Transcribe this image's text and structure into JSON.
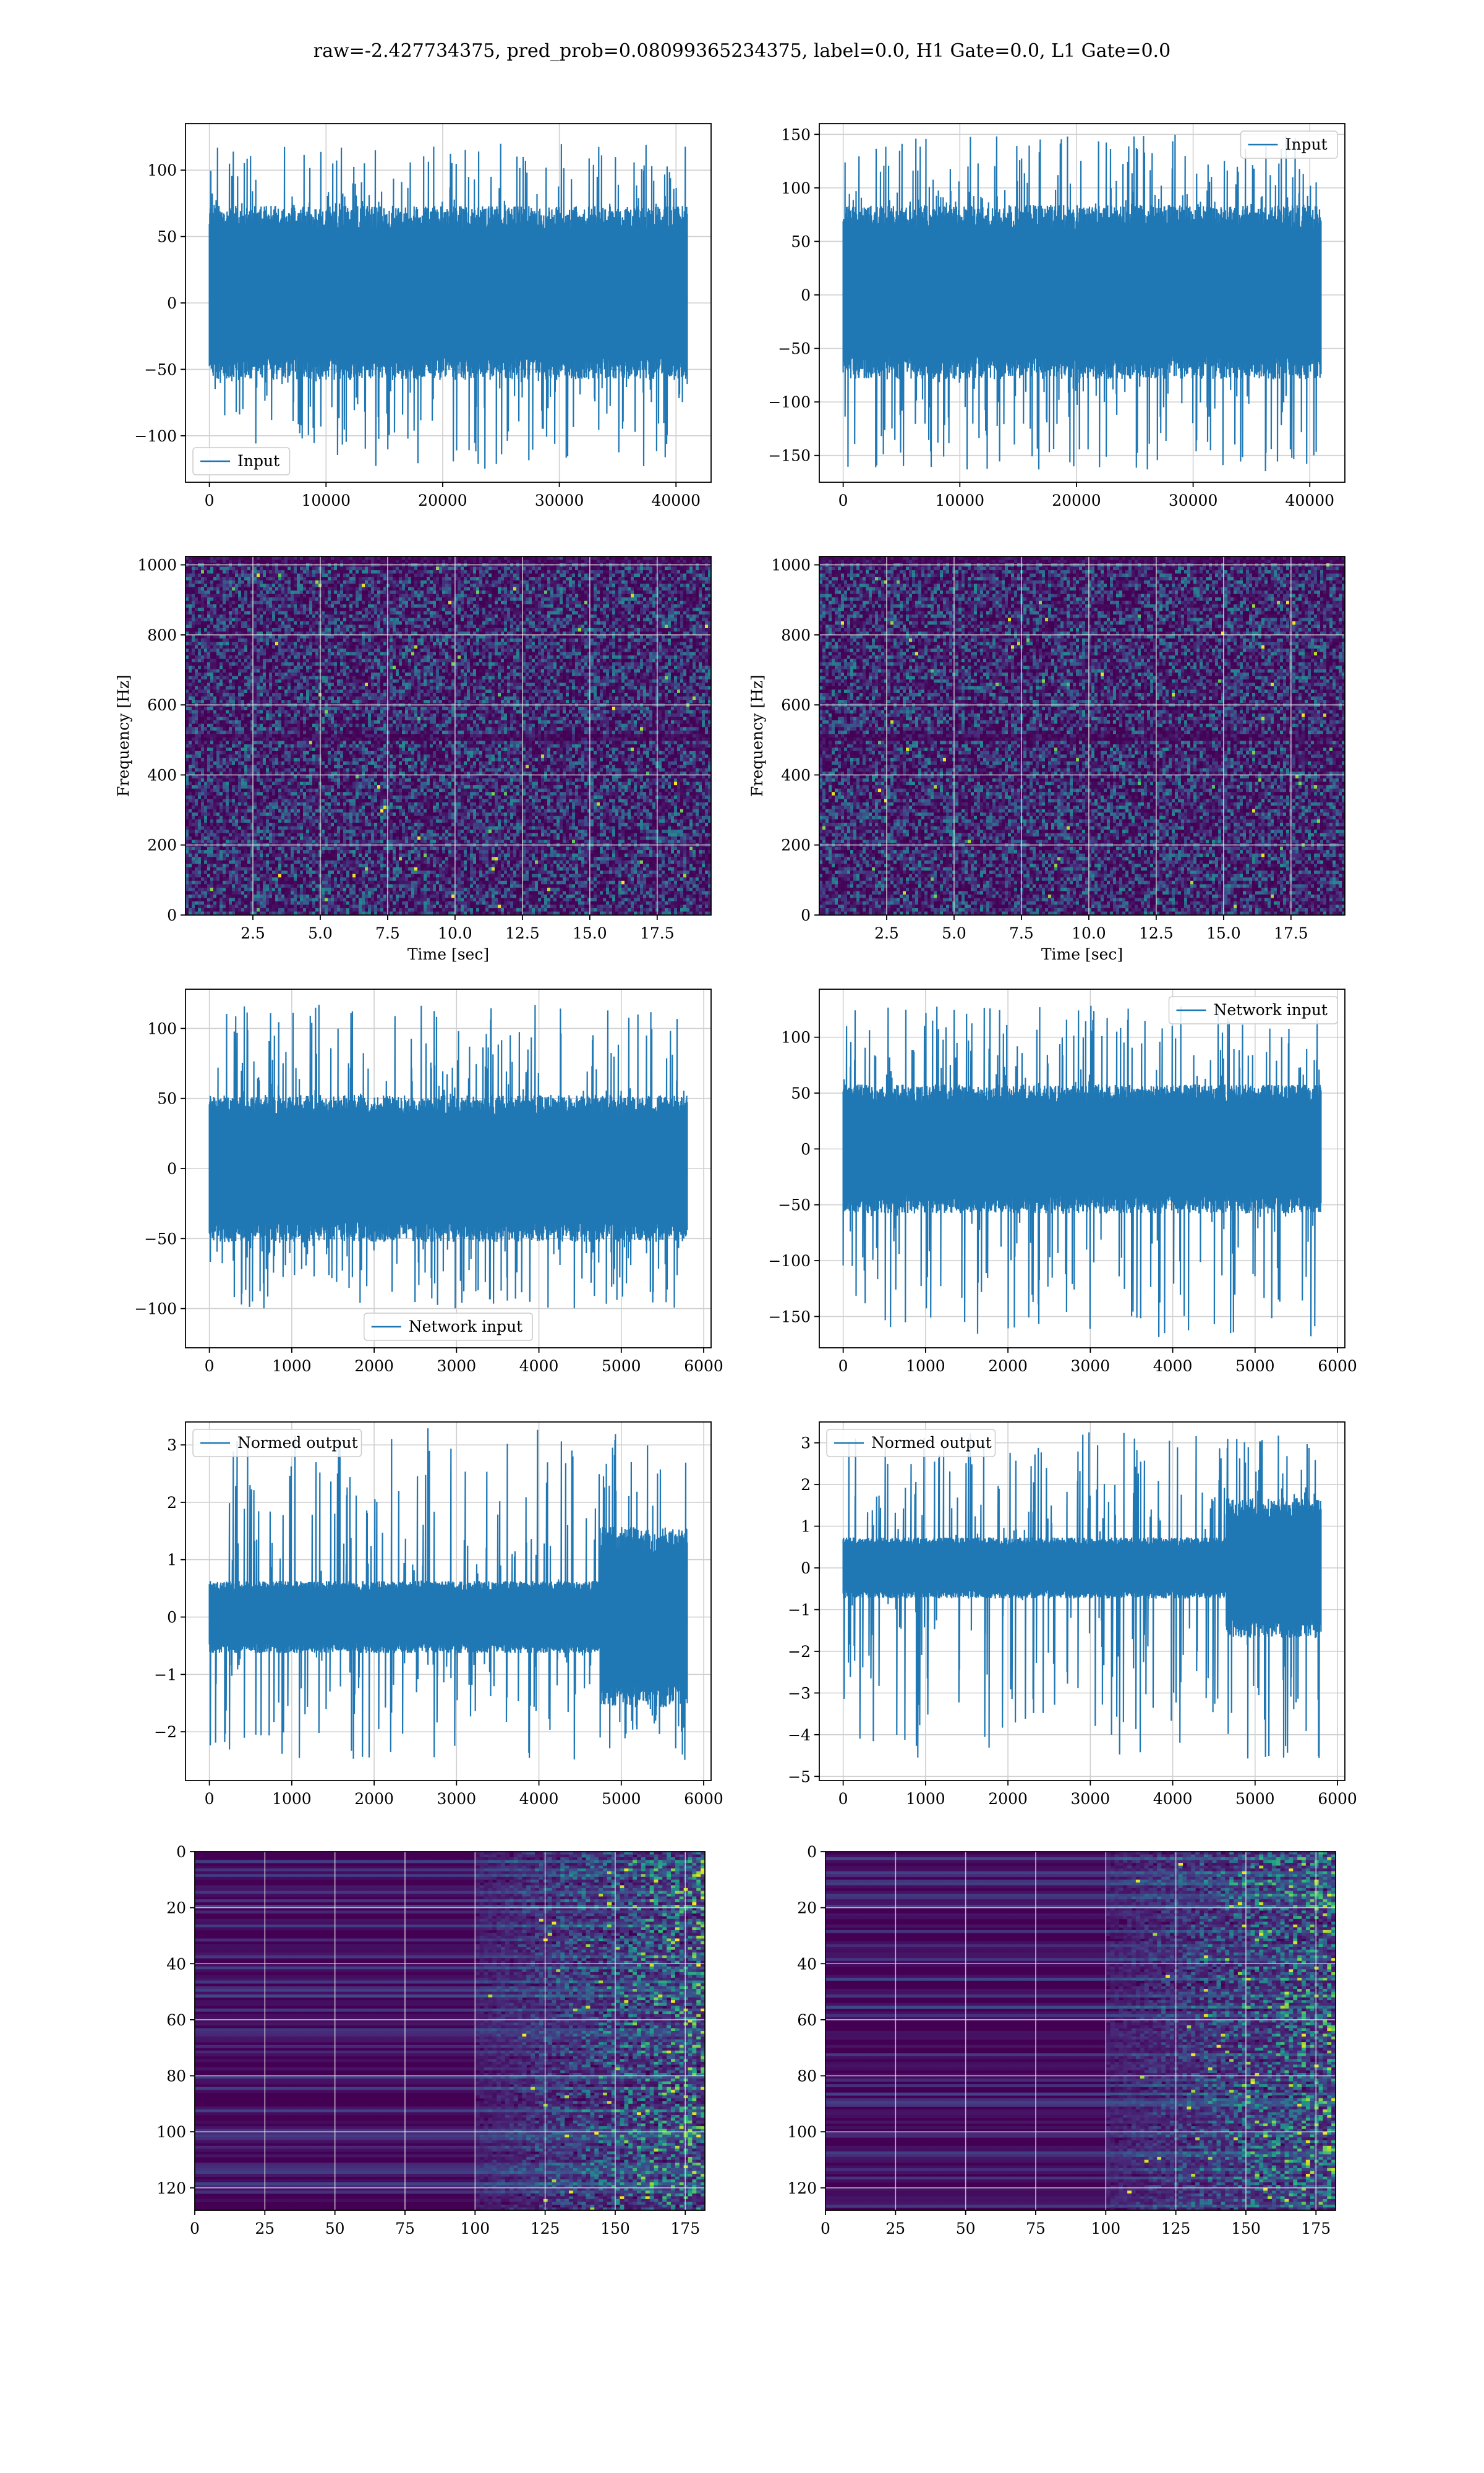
{
  "title": "raw=-2.427734375, pred_prob=0.08099365234375, label=0.0, H1 Gate=0.0, L1 Gate=0.0",
  "colors": {
    "line": "#1f77b4",
    "grid": "#d0d0d0",
    "viridis_low": "#440154",
    "viridis_high": "#fde725"
  },
  "chart_data": [
    {
      "id": "h1-input",
      "type": "line",
      "xlabel": "",
      "ylabel": "",
      "xlim": [
        -2048,
        43008
      ],
      "ylim": [
        -135,
        135
      ],
      "xticks": [
        0,
        10000,
        20000,
        30000,
        40000
      ],
      "yticks": [
        -100,
        -50,
        0,
        50,
        100
      ],
      "xtick_labels": [
        "0",
        "10000",
        "20000",
        "30000",
        "40000"
      ],
      "ytick_labels": [
        "−100",
        "−50",
        "0",
        "50",
        "100"
      ],
      "legend": "lower-left",
      "grid": true,
      "series": [
        {
          "name": "Input",
          "n_samples": 40960,
          "mean": 0,
          "core_range": [
            -55,
            70
          ],
          "min": -125,
          "max": 120
        }
      ]
    },
    {
      "id": "l1-input",
      "type": "line",
      "xlabel": "",
      "ylabel": "",
      "xlim": [
        -2048,
        43008
      ],
      "ylim": [
        -175,
        160
      ],
      "xticks": [
        0,
        10000,
        20000,
        30000,
        40000
      ],
      "yticks": [
        -150,
        -100,
        -50,
        0,
        50,
        100,
        150
      ],
      "xtick_labels": [
        "0",
        "10000",
        "20000",
        "30000",
        "40000"
      ],
      "ytick_labels": [
        "−150",
        "−100",
        "−50",
        "0",
        "50",
        "100",
        "150"
      ],
      "legend": "upper-right",
      "grid": true,
      "series": [
        {
          "name": "Input",
          "n_samples": 40960,
          "mean": 0,
          "core_range": [
            -75,
            80
          ],
          "min": -165,
          "max": 150
        }
      ]
    },
    {
      "id": "h1-spectrogram",
      "type": "heatmap",
      "xlabel": "Time [sec]",
      "ylabel": "Frequency [Hz]",
      "xlim": [
        0,
        19.5
      ],
      "ylim": [
        0,
        1024
      ],
      "xticks": [
        2.5,
        5.0,
        7.5,
        10.0,
        12.5,
        15.0,
        17.5
      ],
      "yticks": [
        0,
        200,
        400,
        600,
        800,
        1000
      ],
      "xtick_labels": [
        "2.5",
        "5.0",
        "7.5",
        "10.0",
        "12.5",
        "15.0",
        "17.5"
      ],
      "ytick_labels": [
        "0",
        "200",
        "400",
        "600",
        "800",
        "1000"
      ],
      "grid": true,
      "colormap": "viridis"
    },
    {
      "id": "l1-spectrogram",
      "type": "heatmap",
      "xlabel": "Time [sec]",
      "ylabel": "Frequency [Hz]",
      "xlim": [
        0,
        19.5
      ],
      "ylim": [
        0,
        1024
      ],
      "xticks": [
        2.5,
        5.0,
        7.5,
        10.0,
        12.5,
        15.0,
        17.5
      ],
      "yticks": [
        0,
        200,
        400,
        600,
        800,
        1000
      ],
      "xtick_labels": [
        "2.5",
        "5.0",
        "7.5",
        "10.0",
        "12.5",
        "15.0",
        "17.5"
      ],
      "ytick_labels": [
        "0",
        "200",
        "400",
        "600",
        "800",
        "1000"
      ],
      "grid": true,
      "colormap": "viridis"
    },
    {
      "id": "h1-network-input",
      "type": "line",
      "xlabel": "",
      "ylabel": "",
      "xlim": [
        -290,
        6090
      ],
      "ylim": [
        -128,
        128
      ],
      "xticks": [
        0,
        1000,
        2000,
        3000,
        4000,
        5000,
        6000
      ],
      "yticks": [
        -100,
        -50,
        0,
        50,
        100
      ],
      "xtick_labels": [
        "0",
        "1000",
        "2000",
        "3000",
        "4000",
        "5000",
        "6000"
      ],
      "ytick_labels": [
        "−100",
        "−50",
        "0",
        "50",
        "100"
      ],
      "legend": "lower-center",
      "grid": true,
      "series": [
        {
          "name": "Network input",
          "n_samples": 5800,
          "mean": 0,
          "core_range": [
            -50,
            50
          ],
          "min": -100,
          "max": 117
        }
      ]
    },
    {
      "id": "l1-network-input",
      "type": "line",
      "xlabel": "",
      "ylabel": "",
      "xlim": [
        -290,
        6090
      ],
      "ylim": [
        -178,
        143
      ],
      "xticks": [
        0,
        1000,
        2000,
        3000,
        4000,
        5000,
        6000
      ],
      "yticks": [
        -150,
        -100,
        -50,
        0,
        50,
        100
      ],
      "xtick_labels": [
        "0",
        "1000",
        "2000",
        "3000",
        "4000",
        "5000",
        "6000"
      ],
      "ytick_labels": [
        "−150",
        "−100",
        "−50",
        "0",
        "50",
        "100"
      ],
      "legend": "upper-right",
      "grid": true,
      "series": [
        {
          "name": "Network input",
          "n_samples": 5800,
          "mean": 0,
          "core_range": [
            -55,
            55
          ],
          "min": -170,
          "max": 130
        }
      ]
    },
    {
      "id": "h1-normed-output",
      "type": "line",
      "xlabel": "",
      "ylabel": "",
      "xlim": [
        -290,
        6090
      ],
      "ylim": [
        -2.85,
        3.4
      ],
      "xticks": [
        0,
        1000,
        2000,
        3000,
        4000,
        5000,
        6000
      ],
      "yticks": [
        -2,
        -1,
        0,
        1,
        2,
        3
      ],
      "xtick_labels": [
        "0",
        "1000",
        "2000",
        "3000",
        "4000",
        "5000",
        "6000"
      ],
      "ytick_labels": [
        "−2",
        "−1",
        "0",
        "1",
        "2",
        "3"
      ],
      "legend": "upper-left",
      "grid": true,
      "series": [
        {
          "name": "Normed output",
          "n_samples": 5800,
          "mean": 0,
          "core_range": [
            -0.6,
            0.6
          ],
          "late_segment_start": 4750,
          "late_core_range": [
            -1.5,
            1.5
          ],
          "min": -2.5,
          "max": 3.3
        }
      ]
    },
    {
      "id": "l1-normed-output",
      "type": "line",
      "xlabel": "",
      "ylabel": "",
      "xlim": [
        -290,
        6090
      ],
      "ylim": [
        -5.1,
        3.5
      ],
      "xticks": [
        0,
        1000,
        2000,
        3000,
        4000,
        5000,
        6000
      ],
      "yticks": [
        -5,
        -4,
        -3,
        -2,
        -1,
        0,
        1,
        2,
        3
      ],
      "xtick_labels": [
        "0",
        "1000",
        "2000",
        "3000",
        "4000",
        "5000",
        "6000"
      ],
      "ytick_labels": [
        "−5",
        "−4",
        "−3",
        "−2",
        "−1",
        "0",
        "1",
        "2",
        "3"
      ],
      "legend": "upper-left",
      "grid": true,
      "series": [
        {
          "name": "Normed output",
          "n_samples": 5800,
          "mean": 0,
          "core_range": [
            -0.7,
            0.7
          ],
          "late_segment_start": 4650,
          "late_core_range": [
            -1.6,
            1.6
          ],
          "min": -4.6,
          "max": 3.3
        }
      ]
    },
    {
      "id": "h1-feature-map",
      "type": "heatmap",
      "xlabel": "",
      "ylabel": "",
      "xlim": [
        0,
        182
      ],
      "ylim": [
        128,
        0
      ],
      "xticks": [
        0,
        25,
        50,
        75,
        100,
        125,
        150,
        175
      ],
      "yticks": [
        0,
        20,
        40,
        60,
        80,
        100,
        120
      ],
      "xtick_labels": [
        "0",
        "25",
        "50",
        "75",
        "100",
        "125",
        "150",
        "175"
      ],
      "ytick_labels": [
        "0",
        "20",
        "40",
        "60",
        "80",
        "100",
        "120"
      ],
      "grid": true,
      "colormap": "viridis",
      "active_from_column": 100
    },
    {
      "id": "l1-feature-map",
      "type": "heatmap",
      "xlabel": "",
      "ylabel": "",
      "xlim": [
        0,
        182
      ],
      "ylim": [
        128,
        0
      ],
      "xticks": [
        0,
        25,
        50,
        75,
        100,
        125,
        150,
        175
      ],
      "yticks": [
        0,
        20,
        40,
        60,
        80,
        100,
        120
      ],
      "xtick_labels": [
        "0",
        "25",
        "50",
        "75",
        "100",
        "125",
        "150",
        "175"
      ],
      "ytick_labels": [
        "0",
        "20",
        "40",
        "60",
        "80",
        "100",
        "120"
      ],
      "grid": true,
      "colormap": "viridis",
      "active_from_column": 100
    }
  ]
}
